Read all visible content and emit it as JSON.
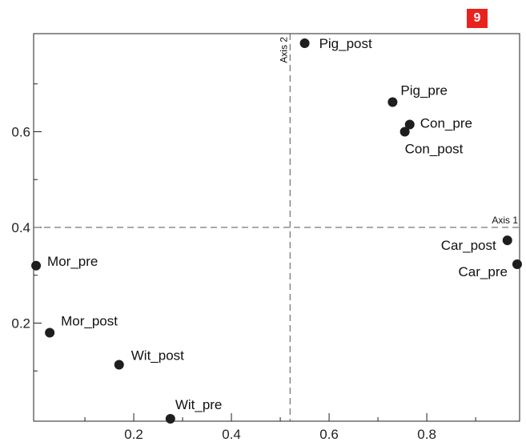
{
  "badge": "9",
  "chart_data": {
    "type": "scatter",
    "xlim": [
      -0.005,
      0.99
    ],
    "ylim": [
      -0.005,
      0.805
    ],
    "x_ticks": [
      0.2,
      0.4,
      0.6,
      0.8
    ],
    "x_tick_labels": [
      "0.2",
      "0.4",
      "0.6",
      "0.8"
    ],
    "y_ticks": [
      0.2,
      0.4,
      0.6
    ],
    "y_tick_labels": [
      "0.2",
      "0.4",
      "0.6"
    ],
    "x_minor_ticks": [
      0.1,
      0.3,
      0.5,
      0.7,
      0.9
    ],
    "y_minor_ticks": [
      0.1,
      0.3,
      0.5,
      0.7
    ],
    "axis1_label": "Axis 1",
    "axis2_label": "Axis 2",
    "axis1_y": 0.4,
    "axis2_x": 0.52,
    "points": [
      {
        "label": "Pig_post",
        "x": 0.55,
        "y": 0.785
      },
      {
        "label": "Pig_pre",
        "x": 0.73,
        "y": 0.662
      },
      {
        "label": "Con_pre",
        "x": 0.765,
        "y": 0.615
      },
      {
        "label": "Con_post",
        "x": 0.755,
        "y": 0.6
      },
      {
        "label": "Car_post",
        "x": 0.965,
        "y": 0.373
      },
      {
        "label": "Car_pre",
        "x": 0.985,
        "y": 0.323
      },
      {
        "label": "Mor_pre",
        "x": 0.0,
        "y": 0.32
      },
      {
        "label": "Mor_post",
        "x": 0.028,
        "y": 0.18
      },
      {
        "label": "Wit_post",
        "x": 0.17,
        "y": 0.113
      },
      {
        "label": "Wit_pre",
        "x": 0.275,
        "y": 0.0
      }
    ]
  }
}
